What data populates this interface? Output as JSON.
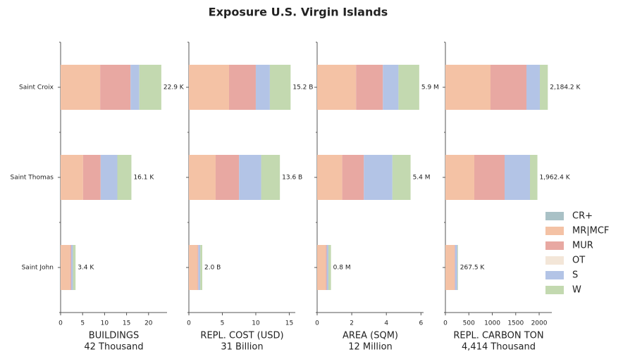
{
  "title": "Exposure U.S. Virgin Islands",
  "chart_data": [
    {
      "type": "bar",
      "xlabel": "BUILDINGS",
      "xlabel_total": "42 Thousand",
      "categories": [
        "Saint Croix",
        "Saint Thomas",
        "Saint John"
      ],
      "series": [
        {
          "name": "CR+",
          "color": "#a9c1c6",
          "values": [
            0,
            0,
            0
          ]
        },
        {
          "name": "MR|MCF",
          "color": "#f4c2a5",
          "values": [
            9.0,
            5.1,
            2.2
          ]
        },
        {
          "name": "MUR",
          "color": "#e8a8a2",
          "values": [
            6.9,
            4.0,
            0.2
          ]
        },
        {
          "name": "OT",
          "color": "#f3e6d8",
          "values": [
            0,
            0,
            0
          ]
        },
        {
          "name": "S",
          "color": "#b3c4e6",
          "values": [
            2.0,
            3.8,
            0.4
          ]
        },
        {
          "name": "W",
          "color": "#c3d9b0",
          "values": [
            5.0,
            3.2,
            0.6
          ]
        }
      ],
      "value_labels": [
        "22.9 K",
        "16.1 K",
        "3.4 K"
      ],
      "xlim": [
        0,
        24.2
      ],
      "xticks": [
        0,
        5,
        10,
        15,
        20
      ]
    },
    {
      "type": "bar",
      "xlabel": "REPL. COST (USD)",
      "xlabel_total": "31 Billion",
      "categories": [
        "Saint Croix",
        "Saint Thomas",
        "Saint John"
      ],
      "series": [
        {
          "name": "CR+",
          "color": "#a9c1c6",
          "values": [
            0,
            0,
            0
          ]
        },
        {
          "name": "MR|MCF",
          "color": "#f4c2a5",
          "values": [
            6.0,
            4.0,
            1.3
          ]
        },
        {
          "name": "MUR",
          "color": "#e8a8a2",
          "values": [
            4.0,
            3.5,
            0.1
          ]
        },
        {
          "name": "OT",
          "color": "#f3e6d8",
          "values": [
            0,
            0,
            0
          ]
        },
        {
          "name": "S",
          "color": "#b3c4e6",
          "values": [
            2.1,
            3.3,
            0.3
          ]
        },
        {
          "name": "W",
          "color": "#c3d9b0",
          "values": [
            3.1,
            2.8,
            0.3
          ]
        }
      ],
      "value_labels": [
        "15.2 B",
        "13.6 B",
        "2.0 B"
      ],
      "xlim": [
        0,
        15.9
      ],
      "xticks": [
        0,
        5,
        10,
        15
      ]
    },
    {
      "type": "bar",
      "xlabel": "AREA (SQM)",
      "xlabel_total": "12 Million",
      "categories": [
        "Saint Croix",
        "Saint Thomas",
        "Saint John"
      ],
      "series": [
        {
          "name": "CR+",
          "color": "#a9c1c6",
          "values": [
            0,
            0,
            0
          ]
        },
        {
          "name": "MR|MCF",
          "color": "#f4c2a5",
          "values": [
            2.25,
            1.45,
            0.5
          ]
        },
        {
          "name": "MUR",
          "color": "#e8a8a2",
          "values": [
            1.55,
            1.25,
            0.05
          ]
        },
        {
          "name": "OT",
          "color": "#f3e6d8",
          "values": [
            0,
            0,
            0
          ]
        },
        {
          "name": "S",
          "color": "#b3c4e6",
          "values": [
            0.9,
            1.65,
            0.1
          ]
        },
        {
          "name": "W",
          "color": "#c3d9b0",
          "values": [
            1.2,
            1.05,
            0.15
          ]
        }
      ],
      "value_labels": [
        "5.9 M",
        "5.4 M",
        "0.8 M"
      ],
      "xlim": [
        0,
        6.15
      ],
      "xticks": [
        0,
        2,
        4,
        6
      ]
    },
    {
      "type": "bar",
      "xlabel": "REPL. CARBON TON",
      "xlabel_total": "4,414 Thousand",
      "categories": [
        "Saint Croix",
        "Saint Thomas",
        "Saint John"
      ],
      "series": [
        {
          "name": "CR+",
          "color": "#a9c1c6",
          "values": [
            0,
            0,
            0
          ]
        },
        {
          "name": "MR|MCF",
          "color": "#f4c2a5",
          "values": [
            962,
            616,
            195
          ]
        },
        {
          "name": "MUR",
          "color": "#e8a8a2",
          "values": [
            767,
            647,
            10
          ]
        },
        {
          "name": "OT",
          "color": "#f3e6d8",
          "values": [
            0,
            0,
            0
          ]
        },
        {
          "name": "S",
          "color": "#b3c4e6",
          "values": [
            285.2,
            541,
            50
          ]
        },
        {
          "name": "W",
          "color": "#c3d9b0",
          "values": [
            170,
            158.4,
            12.5
          ]
        }
      ],
      "value_labels": [
        "2,184.2 K",
        "1,962.4 K",
        "267.5 K"
      ],
      "xlim": [
        0,
        2270
      ],
      "xticks": [
        0,
        500,
        1000,
        1500,
        2000
      ]
    }
  ]
}
